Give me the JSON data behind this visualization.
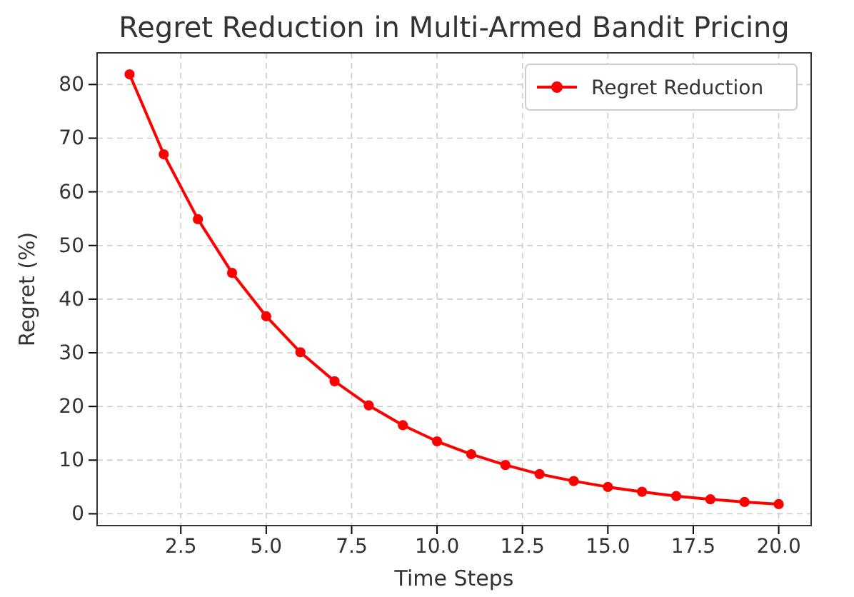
{
  "chart_data": {
    "type": "line",
    "title": "Regret Reduction in Multi-Armed Bandit Pricing",
    "xlabel": "Time Steps",
    "ylabel": "Regret (%)",
    "x": [
      1,
      2,
      3,
      4,
      5,
      6,
      7,
      8,
      9,
      10,
      11,
      12,
      13,
      14,
      15,
      16,
      17,
      18,
      19,
      20
    ],
    "series": [
      {
        "name": "Regret Reduction",
        "color": "#ff0000",
        "values": [
          81.9,
          67.0,
          54.9,
          44.9,
          36.8,
          30.1,
          24.7,
          20.2,
          16.5,
          13.5,
          11.1,
          9.1,
          7.4,
          6.1,
          5.0,
          4.1,
          3.3,
          2.7,
          2.2,
          1.8
        ]
      }
    ],
    "xlim": [
      0.05,
      20.95
    ],
    "ylim": [
      -2.2,
      85.9
    ],
    "xticks": [
      {
        "value": 2.5,
        "label": "2.5"
      },
      {
        "value": 5,
        "label": "5.0"
      },
      {
        "value": 7.5,
        "label": "7.5"
      },
      {
        "value": 10,
        "label": "10.0"
      },
      {
        "value": 12.5,
        "label": "12.5"
      },
      {
        "value": 15,
        "label": "15.0"
      },
      {
        "value": 17.5,
        "label": "17.5"
      },
      {
        "value": 20,
        "label": "20.0"
      }
    ],
    "yticks": [
      0,
      10,
      20,
      30,
      40,
      50,
      60,
      70,
      80
    ],
    "grid": true,
    "legend": "top right",
    "marker": "circle",
    "line_style": "solid"
  }
}
